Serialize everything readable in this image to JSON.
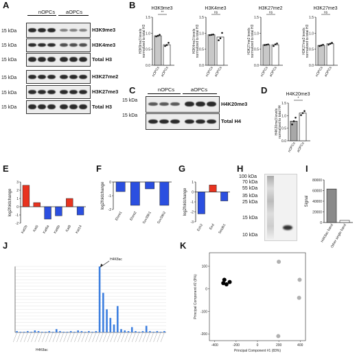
{
  "panel_letters": {
    "A": "A",
    "B": "B",
    "C": "C",
    "D": "D",
    "E": "E",
    "F": "F",
    "G": "G",
    "H": "H",
    "I": "I",
    "J": "J",
    "K": "K"
  },
  "panel_a": {
    "groups": [
      "nOPCs",
      "aOPCs"
    ],
    "kda": "15 kDa",
    "rows": [
      "H3K9me3",
      "H3K4me3",
      "Total H3",
      "H3K27me2",
      "H3K27me3",
      "Total H3"
    ]
  },
  "panel_c": {
    "groups": [
      "nOPCs",
      "aOPCs"
    ],
    "kda": "15 kDa",
    "rows": [
      "H4K20me3",
      "Total H4"
    ]
  },
  "panel_h": {
    "ladder": [
      "100 kDa",
      "70 kDa",
      "55 kDa",
      "35 kDa",
      "25 kDa",
      "15 kDa",
      "10 kDa"
    ]
  },
  "chart_data": [
    {
      "panel": "B",
      "type": "bar",
      "title": "H3K9me3",
      "categories": [
        "nOPCs",
        "aOPCs"
      ],
      "values": [
        0.92,
        0.64
      ],
      "points": [
        [
          0.9,
          0.92,
          0.95
        ],
        [
          0.6,
          0.63,
          0.7
        ]
      ],
      "ylabel": "H3K9me3 levels normalized to total H3",
      "ylim": [
        0,
        1.5
      ],
      "yticks": [
        "0.0",
        "0.5",
        "1.0",
        "1.5"
      ],
      "significance": "**"
    },
    {
      "panel": "B",
      "type": "bar",
      "title": "H3K4me3",
      "categories": [
        "nOPCs",
        "aOPCs"
      ],
      "values": [
        0.95,
        0.88
      ],
      "points": [
        [
          0.94,
          0.95,
          0.96
        ],
        [
          0.78,
          0.84,
          1.01
        ]
      ],
      "ylabel": "H3K4me3 levels normalized to total H3",
      "ylim": [
        0,
        1.5
      ],
      "yticks": [
        "0.0",
        "0.5",
        "1.0",
        "1.5"
      ],
      "significance": "ns"
    },
    {
      "panel": "B",
      "type": "bar",
      "title": "H3K27me2",
      "categories": [
        "nOPCs",
        "aOPCs"
      ],
      "values": [
        0.64,
        0.64
      ],
      "points": [
        [
          0.63,
          0.64,
          0.65
        ],
        [
          0.6,
          0.65,
          0.68
        ]
      ],
      "ylabel": "H3K27me2 levels normalized to total H3",
      "ylim": [
        0,
        1.5
      ],
      "yticks": [
        "0.0",
        "0.5",
        "1.0",
        "1.5"
      ],
      "significance": "ns"
    },
    {
      "panel": "B",
      "type": "bar",
      "title": "H3K27me3",
      "categories": [
        "nOPCs",
        "aOPCs"
      ],
      "values": [
        0.62,
        0.67
      ],
      "points": [
        [
          0.6,
          0.62,
          0.64
        ],
        [
          0.64,
          0.67,
          0.7
        ]
      ],
      "ylabel": "H3K27me3 levels normalized to total H3",
      "ylim": [
        0,
        1.5
      ],
      "yticks": [
        "0.0",
        "0.5",
        "1.0",
        "1.5"
      ],
      "significance": "ns"
    },
    {
      "panel": "D",
      "type": "bar",
      "title": "H4K20me3",
      "categories": [
        "nOPCs",
        "aOPCs"
      ],
      "values": [
        0.78,
        1.1
      ],
      "points": [
        [
          0.65,
          0.78,
          0.92
        ],
        [
          1.02,
          1.1,
          1.18
        ]
      ],
      "ylabel": "H4K20me3 levels normalized to total H4",
      "ylim": [
        0,
        1.5
      ],
      "yticks": [
        "0.0",
        "0.5",
        "1.0",
        "1.5"
      ],
      "significance": "*"
    },
    {
      "panel": "E",
      "type": "bar",
      "categories": [
        "Kat2b",
        "Kat5",
        "Kat6a",
        "Kat6b",
        "Kat8",
        "Kat14"
      ],
      "values": [
        2.6,
        0.5,
        -1.5,
        -1.1,
        1.0,
        -1.0
      ],
      "ylabel": "log2foldchange",
      "ylim": [
        -2,
        3
      ],
      "yticks": [
        "-2",
        "-1",
        "0",
        "1",
        "2",
        "3"
      ]
    },
    {
      "panel": "F",
      "type": "bar",
      "categories": [
        "Ehmt1",
        "Ehmt2",
        "Suv39h1",
        "Suv39h2"
      ],
      "values": [
        -0.7,
        -1.7,
        -0.5,
        -1.7
      ],
      "ylabel": "log2foldchange",
      "ylim": [
        -2,
        0
      ],
      "yticks": [
        "-2",
        "-1",
        "0"
      ]
    },
    {
      "panel": "G",
      "type": "bar",
      "categories": [
        "Ezh2",
        "Eed",
        "Setdb1"
      ],
      "values": [
        -2.2,
        0.7,
        -0.9
      ],
      "ylabel": "log2foldchange",
      "ylim": [
        -3,
        1
      ],
      "yticks": [
        "-3",
        "-2",
        "-1",
        "0",
        "1"
      ]
    },
    {
      "panel": "I",
      "type": "bar",
      "categories": [
        "H4K8ac band",
        "Other single band"
      ],
      "values": [
        63000,
        4000
      ],
      "ylabel": "Signal",
      "ylim": [
        0,
        80000
      ],
      "yticks": [
        "0",
        "20000",
        "40000",
        "60000",
        "80000"
      ]
    },
    {
      "panel": "J",
      "type": "bar",
      "annotation": "H4K8ac",
      "xlabel": "H4K8ac",
      "peak_value": 1.0,
      "values": [
        0.02,
        0.01,
        0.01,
        0.02,
        0.01,
        0.03,
        0.02,
        0.01,
        0.01,
        0.02,
        0.01,
        0.05,
        0.02,
        0.01,
        0.01,
        0.02,
        0.01,
        0.03,
        0.02,
        0.01,
        0.02,
        0.01,
        0.02,
        1.0,
        0.6,
        0.35,
        0.22,
        0.12,
        0.4,
        0.05,
        0.03,
        0.02,
        0.08,
        0.02,
        0.01,
        0.02,
        0.1,
        0.02,
        0.01,
        0.02,
        0.01,
        0.02
      ]
    },
    {
      "panel": "K",
      "type": "scatter",
      "xlabel": "Principal Component #1 (83%)",
      "ylabel": "Principal Component #2 (9%)",
      "xticks": [
        "-400",
        "-200",
        "0",
        "200",
        "400"
      ],
      "yticks": [
        "-200",
        "-100",
        "0",
        "100"
      ],
      "xlim": [
        -450,
        450
      ],
      "ylim": [
        -230,
        160
      ],
      "series": [
        {
          "color": "#000000",
          "x": [
            -310,
            -290,
            -260,
            -320
          ],
          "y": [
            40,
            20,
            30,
            25
          ]
        },
        {
          "color": "#b0b0b0",
          "x": [
            200,
            395,
            390,
            195
          ],
          "y": [
            120,
            40,
            -40,
            -210
          ]
        }
      ]
    }
  ]
}
